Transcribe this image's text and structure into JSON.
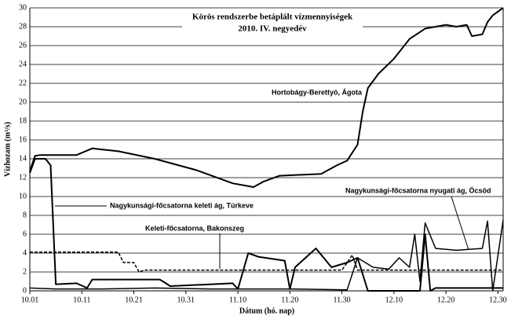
{
  "chart_data": {
    "type": "line",
    "title": "Körös rendszerbe betáplált vízmennyiségek",
    "subtitle": "2010. IV. negyedév",
    "y_label": "Vízhozam (m³/s)",
    "x_label": "Dátum (hó. nap)",
    "xlim": [
      "10.01",
      "12.31"
    ],
    "xticks": [
      "10.01",
      "10.11",
      "10.21",
      "10.31",
      "11.10",
      "11.20",
      "11.30",
      "12.10",
      "12.20",
      "12.30"
    ],
    "ylim": [
      0,
      30
    ],
    "yticks": [
      0,
      2,
      4,
      6,
      8,
      10,
      12,
      14,
      16,
      18,
      20,
      22,
      24,
      26,
      28,
      30
    ],
    "grid": true,
    "series": [
      {
        "name": "Hortobágy-Berettyó, Ágota",
        "color": "#000000",
        "line_style": "solid",
        "width": 2,
        "x": [
          "10.01",
          "10.02",
          "10.03",
          "10.10",
          "10.13",
          "10.18",
          "10.25",
          "11.02",
          "11.09",
          "11.13",
          "11.15",
          "11.18",
          "11.26",
          "11.29",
          "12.01",
          "12.03",
          "12.04",
          "12.05",
          "12.07",
          "12.10",
          "12.13",
          "12.16",
          "12.20",
          "12.22",
          "12.24",
          "12.25",
          "12.27",
          "12.28",
          "12.29",
          "12.31"
        ],
        "values": [
          12.7,
          14.3,
          14.4,
          14.4,
          15.1,
          14.8,
          14.0,
          12.8,
          11.4,
          11.0,
          11.6,
          12.2,
          12.4,
          13.3,
          13.8,
          15.5,
          19,
          21.5,
          23,
          24.6,
          26.7,
          27.8,
          28.2,
          28.0,
          28.2,
          27.0,
          27.2,
          28.5,
          29.2,
          30
        ]
      },
      {
        "name": "Nagykunsági-főcsatorna keleti ág, Túrkeve",
        "color": "#000000",
        "line_style": "solid",
        "width": 2,
        "x": [
          "10.01",
          "10.02",
          "10.04",
          "10.05",
          "10.06",
          "10.10",
          "10.12",
          "10.13",
          "10.26",
          "10.28",
          "11.09",
          "11.10",
          "11.12",
          "11.14",
          "11.19",
          "11.20",
          "11.21",
          "11.25",
          "11.28",
          "12.01",
          "12.03",
          "12.05",
          "12.15",
          "12.16",
          "12.17",
          "12.18",
          "12.31"
        ],
        "values": [
          12.5,
          14,
          14,
          13.3,
          0.7,
          0.8,
          0.3,
          1.2,
          1.2,
          0.5,
          0.8,
          0.2,
          4,
          3.6,
          3.2,
          0.2,
          2.5,
          4.5,
          2.5,
          3,
          3.5,
          0,
          0,
          6,
          0,
          0.3,
          0.3
        ]
      },
      {
        "name": "Keleti-főcsatorna, Bakonszeg",
        "color": "#000000",
        "line_style": "dashed",
        "width": 1.5,
        "x": [
          "10.01",
          "10.18",
          "10.19",
          "10.21",
          "10.22",
          "10.23",
          "11.30",
          "12.02",
          "12.03",
          "12.31"
        ],
        "values": [
          4.1,
          4.1,
          3,
          3,
          2,
          2.2,
          2.2,
          3.8,
          2.2,
          2.2
        ]
      },
      {
        "name": "Nagykunsági-főcsatorna nyugati ág, Öcsöd",
        "color": "#000000",
        "line_style": "solid",
        "width": 1.5,
        "x": [
          "10.01",
          "10.06",
          "10.15",
          "10.25",
          "11.05",
          "11.20",
          "12.01",
          "12.03",
          "12.06",
          "12.09",
          "12.11",
          "12.13",
          "12.14",
          "12.15",
          "12.16",
          "12.18",
          "12.22",
          "12.27",
          "12.28",
          "12.29",
          "12.31"
        ],
        "values": [
          0.3,
          0.2,
          0.2,
          0.3,
          0.2,
          0.2,
          0.1,
          3.5,
          2.5,
          2.3,
          3.5,
          2.5,
          6,
          1,
          7.2,
          4.5,
          4.3,
          4.5,
          7.4,
          0,
          7.5
        ]
      }
    ]
  }
}
